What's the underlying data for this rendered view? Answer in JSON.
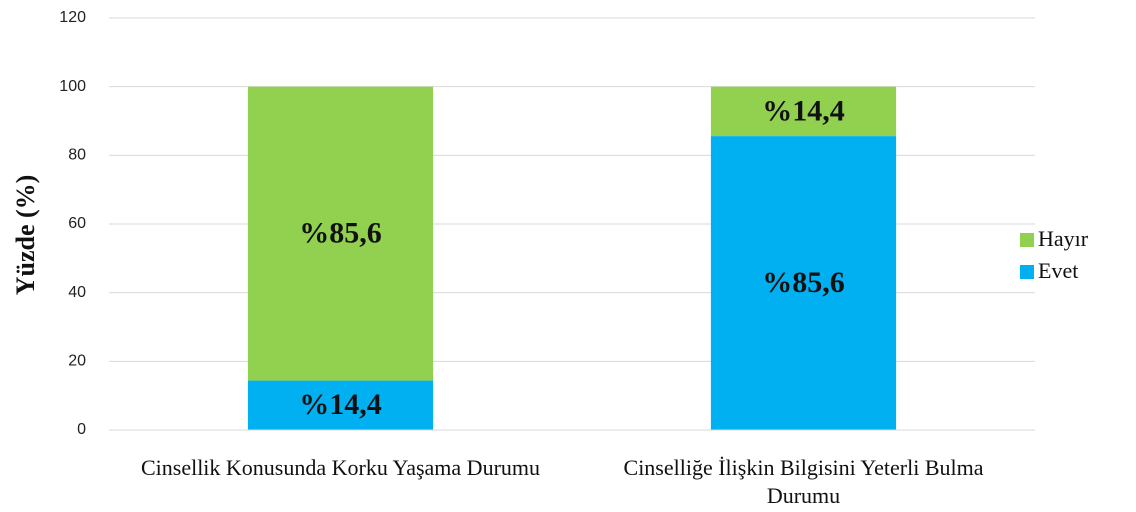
{
  "chart_data": {
    "type": "stacked_bar",
    "categories": [
      "Cinsellik Konusunda Korku Yaşama Durumu",
      "Cinselliğe İlişkin Bilgisini Yeterli Bulma Durumu"
    ],
    "series": [
      {
        "name": "Evet",
        "color": "#00b0f0",
        "values": [
          14.4,
          85.6
        ],
        "value_labels": [
          "%14,4",
          "%85,6"
        ]
      },
      {
        "name": "Hayır",
        "color": "#92d050",
        "values": [
          85.6,
          14.4
        ],
        "value_labels": [
          "%85,6",
          "%14,4"
        ]
      }
    ],
    "ylabel": "Yüzde (%)",
    "ylim": [
      0,
      120
    ],
    "yticks": [
      0,
      20,
      40,
      60,
      80,
      100,
      120
    ],
    "grid": true,
    "legend": "right"
  }
}
